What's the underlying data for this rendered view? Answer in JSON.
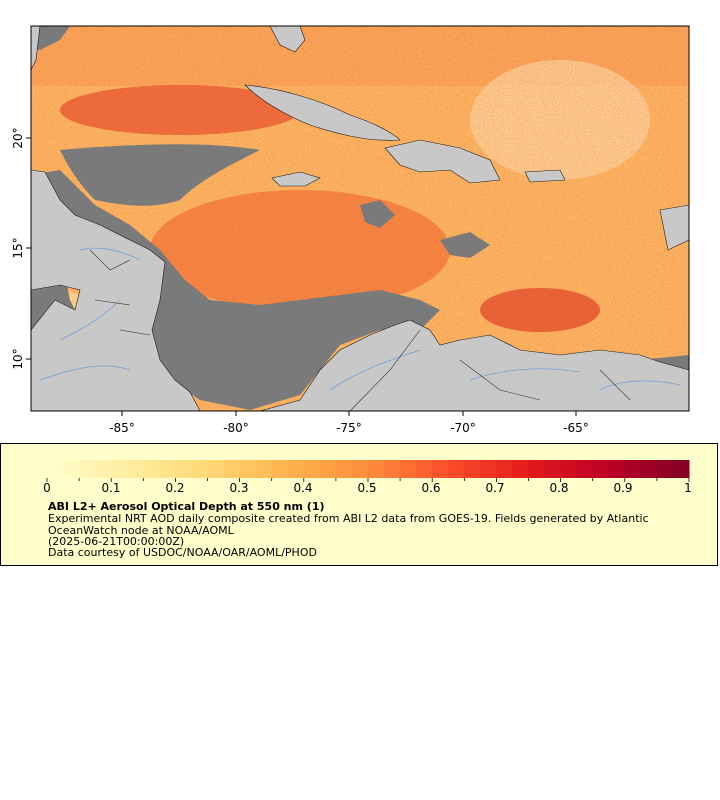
{
  "map": {
    "x_ticks": [
      "-85°",
      "-80°",
      "-75°",
      "-70°",
      "-65°"
    ],
    "y_ticks": [
      "20°",
      "15°",
      "10°"
    ],
    "lon_range": [
      -89,
      -60
    ],
    "lat_range": [
      8,
      25
    ],
    "colors": {
      "no_data": "#7a7a7a",
      "land": "#c8c8c8",
      "coastline": "#1a1a1a",
      "rivers": "#6fa0d8"
    }
  },
  "legend": {
    "colorbar_labels": [
      "0",
      "0.1",
      "0.2",
      "0.3",
      "0.4",
      "0.5",
      "0.6",
      "0.7",
      "0.8",
      "0.9",
      "1"
    ],
    "colorbar_range": [
      0,
      1
    ],
    "colorbar_colors": [
      "#ffffcc",
      "#ffeda0",
      "#fed976",
      "#feb24c",
      "#fd8d3c",
      "#fc4e2a",
      "#e31a1c",
      "#bd0026",
      "#800026"
    ],
    "title": "ABI L2+ Aerosol Optical Depth at 550 nm (1)",
    "description": "Experimental NRT AOD daily composite created from ABI L2 data from GOES-19. Fields generated by Atlantic OceanWatch node at NOAA/AOML",
    "time": "(2025-06-21T00:00:00Z)",
    "credit": "Data courtesy of USDOC/NOAA/OAR/AOML/PHOD"
  }
}
